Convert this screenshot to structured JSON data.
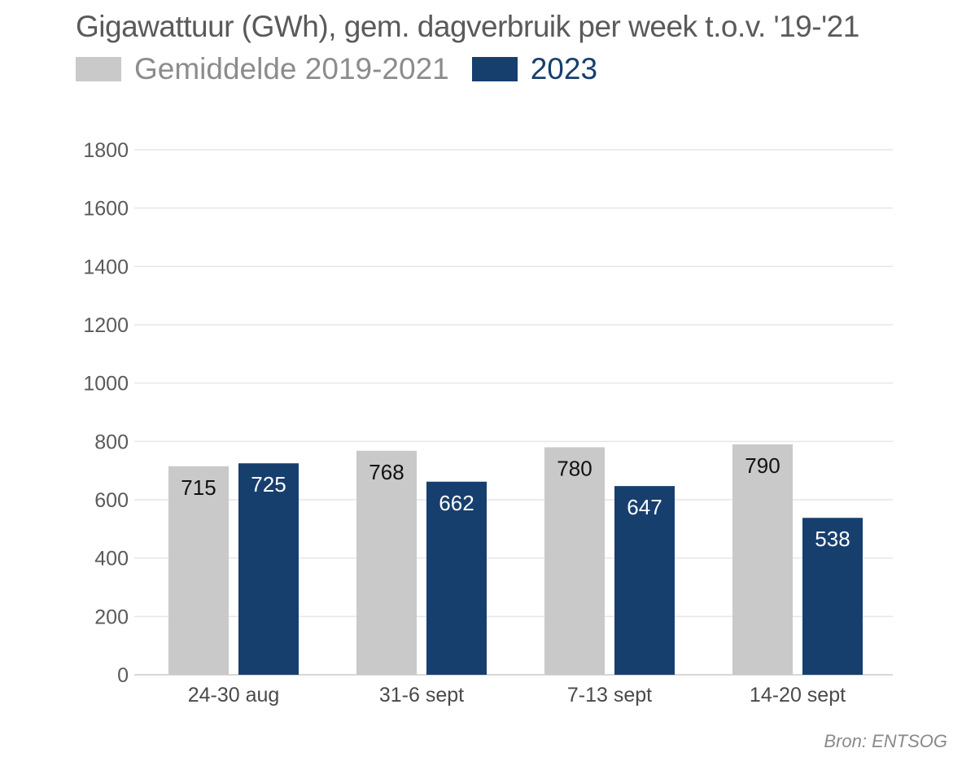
{
  "chart_data": {
    "type": "bar",
    "title": "Gigawattuur (GWh), gem. dagverbruik per week t.o.v. '19-'21",
    "categories": [
      "24-30 aug",
      "31-6 sept",
      "7-13 sept",
      "14-20 sept"
    ],
    "series": [
      {
        "name": "Gemiddelde 2019-2021",
        "color": "#c9c9c9",
        "label_color": "#111111",
        "values": [
          715,
          768,
          780,
          790
        ]
      },
      {
        "name": "2023",
        "color": "#173f6e",
        "label_color": "#ffffff",
        "values": [
          725,
          662,
          647,
          538
        ]
      }
    ],
    "xlabel": "",
    "ylabel": "",
    "ylim": [
      0,
      1800
    ],
    "yticks": [
      0,
      200,
      400,
      600,
      800,
      1000,
      1200,
      1400,
      1600,
      1800
    ],
    "grid": true,
    "legend_position": "top-left",
    "source": "Bron: ENTSOG"
  }
}
